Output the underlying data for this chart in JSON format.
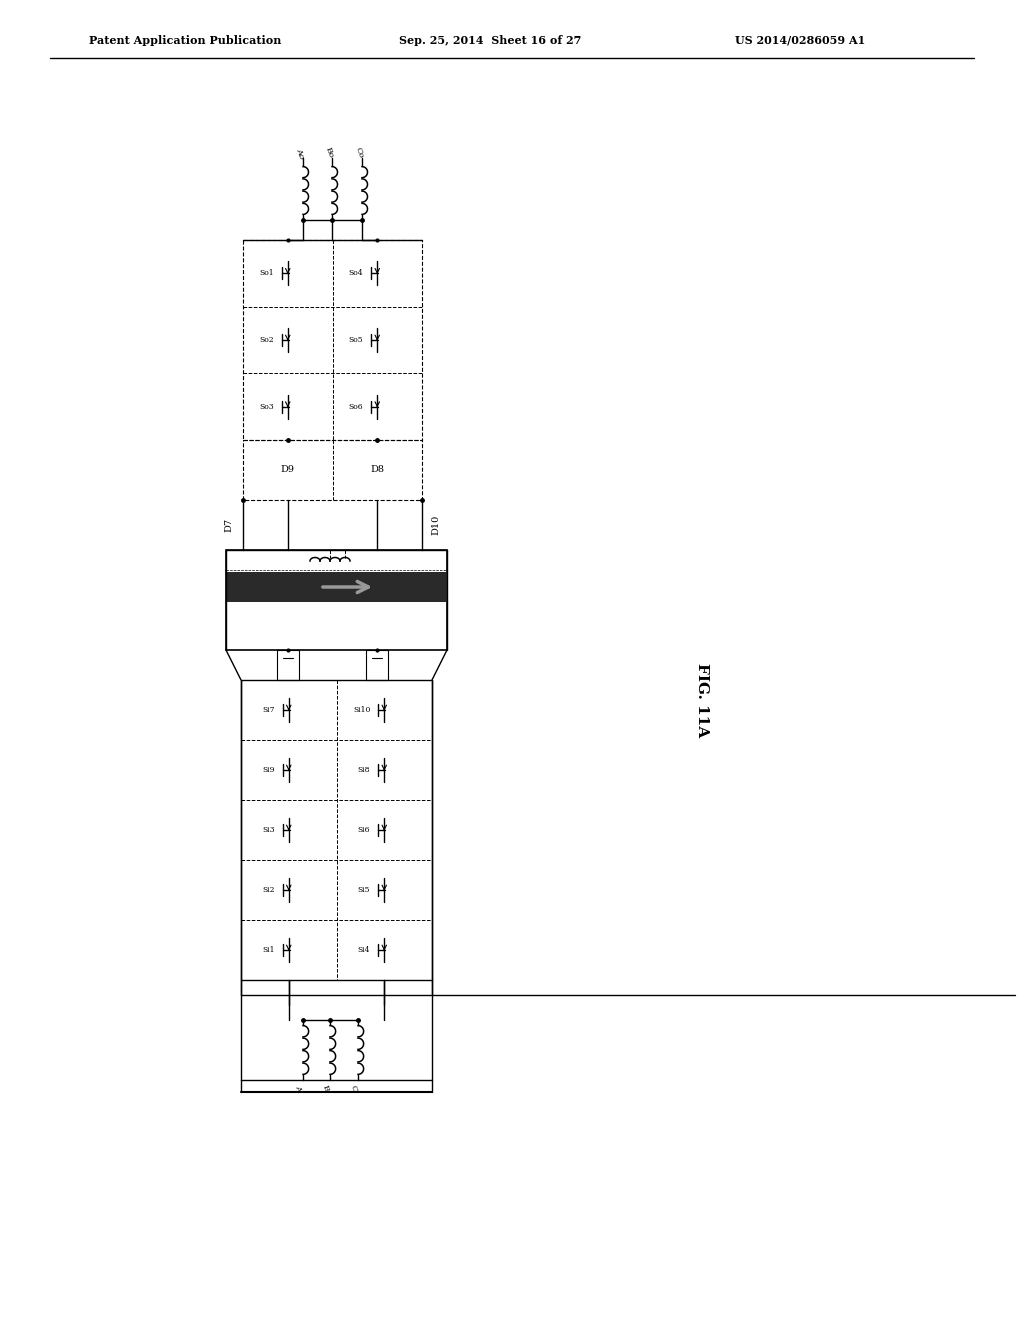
{
  "header_left": "Patent Application Publication",
  "header_center": "Sep. 25, 2014  Sheet 16 of 27",
  "header_right": "US 2014/0286059 A1",
  "fig_label": "FIG. 11A",
  "bg_color": "#ffffff"
}
